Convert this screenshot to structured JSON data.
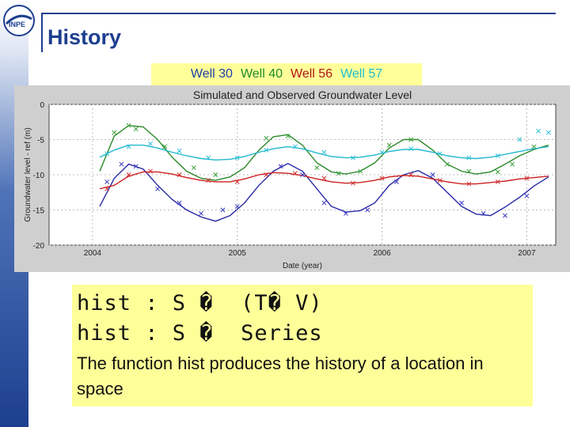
{
  "header": {
    "title": "History",
    "logo_text": "INPE"
  },
  "legend": [
    {
      "label": "Well 30",
      "color": "#1f3fa8"
    },
    {
      "label": "Well 40",
      "color": "#1f8a2e"
    },
    {
      "label": "Well 56",
      "color": "#b01515"
    },
    {
      "label": "Well 57",
      "color": "#1fbcd0"
    }
  ],
  "code": {
    "line1": "hist : S �  (T� V)",
    "line2": "hist : S �  Series"
  },
  "description": "The function hist produces the history of a location in space",
  "chart_data": {
    "type": "line",
    "title": "Simulated and Observed Groundwater Level",
    "xlabel": "Date (year)",
    "ylabel": "Groundwater level - ref (m)",
    "xlim": [
      2003.7,
      2007.2
    ],
    "ylim": [
      -20,
      0
    ],
    "xticks": [
      "2004",
      "2005",
      "2006",
      "2007"
    ],
    "yticks": [
      "0",
      "-5",
      "-10",
      "-15",
      "-20"
    ],
    "grid": true,
    "series": [
      {
        "color": "#2a2aa8",
        "x": [
          2004.05,
          2004.15,
          2004.25,
          2004.35,
          2004.45,
          2004.55,
          2004.65,
          2004.75,
          2004.85,
          2004.95,
          2005.05,
          2005.15,
          2005.25,
          2005.35,
          2005.45,
          2005.55,
          2005.65,
          2005.75,
          2005.85,
          2005.95,
          2006.05,
          2006.15,
          2006.25,
          2006.35,
          2006.45,
          2006.55,
          2006.65,
          2006.75,
          2006.85,
          2006.95,
          2007.05,
          2007.15
        ],
        "y": [
          -14.5,
          -10.5,
          -8.5,
          -9.2,
          -11.5,
          -13.5,
          -15,
          -16,
          -16.6,
          -15.8,
          -14,
          -11.5,
          -9.5,
          -8.4,
          -9.5,
          -12,
          -14.5,
          -15.3,
          -15.1,
          -14,
          -11.5,
          -10,
          -9.4,
          -10.5,
          -12.5,
          -14.5,
          -15.6,
          -15.8,
          -14.6,
          -13.2,
          -11.6,
          -10.3
        ]
      },
      {
        "color": "#2a8a2a",
        "x": [
          2004.05,
          2004.15,
          2004.25,
          2004.35,
          2004.45,
          2004.55,
          2004.65,
          2004.75,
          2004.85,
          2004.95,
          2005.05,
          2005.15,
          2005.25,
          2005.35,
          2005.45,
          2005.55,
          2005.65,
          2005.75,
          2005.85,
          2005.95,
          2006.05,
          2006.15,
          2006.25,
          2006.35,
          2006.45,
          2006.55,
          2006.65,
          2006.75,
          2006.85,
          2006.95,
          2007.05,
          2007.15
        ],
        "y": [
          -9.5,
          -4.5,
          -3,
          -3.2,
          -5,
          -7.5,
          -9.5,
          -10.5,
          -10.8,
          -10.3,
          -9,
          -6.5,
          -4.6,
          -4.3,
          -5.8,
          -8.3,
          -9.6,
          -9.9,
          -9.5,
          -8.3,
          -6.2,
          -5,
          -5,
          -6.5,
          -8.5,
          -9.5,
          -9.9,
          -9.6,
          -8.5,
          -7.3,
          -6.4,
          -5.8
        ]
      },
      {
        "color": "#cc2020",
        "x": [
          2004.05,
          2004.15,
          2004.25,
          2004.35,
          2004.45,
          2004.55,
          2004.65,
          2004.75,
          2004.85,
          2004.95,
          2005.05,
          2005.15,
          2005.25,
          2005.35,
          2005.45,
          2005.55,
          2005.65,
          2005.75,
          2005.85,
          2005.95,
          2006.05,
          2006.15,
          2006.25,
          2006.35,
          2006.45,
          2006.55,
          2006.65,
          2006.75,
          2006.85,
          2006.95,
          2007.05,
          2007.15
        ],
        "y": [
          -12,
          -11.5,
          -10.2,
          -9.6,
          -9.6,
          -9.9,
          -10.4,
          -10.8,
          -11,
          -11,
          -10.6,
          -10,
          -9.7,
          -9.8,
          -10.1,
          -10.6,
          -11,
          -11.2,
          -11.1,
          -10.8,
          -10.3,
          -10.1,
          -10.2,
          -10.6,
          -11,
          -11.3,
          -11.3,
          -11.1,
          -10.9,
          -10.6,
          -10.4,
          -10.2
        ]
      },
      {
        "color": "#22b8d0",
        "x": [
          2004.05,
          2004.15,
          2004.25,
          2004.35,
          2004.45,
          2004.55,
          2004.65,
          2004.75,
          2004.85,
          2004.95,
          2005.05,
          2005.15,
          2005.25,
          2005.35,
          2005.45,
          2005.55,
          2005.65,
          2005.75,
          2005.85,
          2005.95,
          2006.05,
          2006.15,
          2006.25,
          2006.35,
          2006.45,
          2006.55,
          2006.65,
          2006.75,
          2006.85,
          2006.95,
          2007.05,
          2007.15
        ],
        "y": [
          -7.5,
          -6.5,
          -5.8,
          -5.8,
          -6.2,
          -6.8,
          -7.3,
          -7.7,
          -7.9,
          -7.8,
          -7.4,
          -6.8,
          -6.3,
          -6,
          -6.3,
          -6.9,
          -7.4,
          -7.6,
          -7.5,
          -7.2,
          -6.7,
          -6.4,
          -6.4,
          -6.8,
          -7.3,
          -7.6,
          -7.7,
          -7.5,
          -7.1,
          -6.7,
          -6.3,
          -6
        ]
      }
    ],
    "observed": [
      {
        "color": "#3b3bc0",
        "x": [
          2004.1,
          2004.2,
          2004.3,
          2004.45,
          2004.6,
          2004.75,
          2004.9,
          2005.0,
          2005.3,
          2005.45,
          2005.6,
          2005.75,
          2005.9,
          2006.1,
          2006.35,
          2006.55,
          2006.7,
          2006.85,
          2007.0
        ],
        "y": [
          -11,
          -8.5,
          -8.8,
          -12,
          -14,
          -15.5,
          -15,
          -14.5,
          -8.8,
          -10,
          -14,
          -15.5,
          -15,
          -11,
          -10,
          -14,
          -15.5,
          -15.8,
          -13
        ]
      },
      {
        "color": "#3aa03a",
        "x": [
          2004.15,
          2004.25,
          2004.3,
          2004.5,
          2004.7,
          2004.85,
          2005.2,
          2005.35,
          2005.55,
          2005.7,
          2005.85,
          2006.05,
          2006.2,
          2006.45,
          2006.6,
          2006.8,
          2006.9,
          2007.05
        ],
        "y": [
          -4,
          -3,
          -3.5,
          -6,
          -9,
          -10,
          -4.8,
          -4.5,
          -9,
          -9.8,
          -9.5,
          -5.8,
          -5,
          -8.5,
          -9.5,
          -9.6,
          -8.5,
          -6
        ]
      },
      {
        "color": "#d03030",
        "x": [
          2004.1,
          2004.25,
          2004.4,
          2004.6,
          2004.8,
          2005.0,
          2005.2,
          2005.4,
          2005.6,
          2005.8,
          2006.0,
          2006.2,
          2006.4,
          2006.6,
          2006.8,
          2007.0
        ],
        "y": [
          -12,
          -10,
          -9.5,
          -10,
          -10.8,
          -11,
          -10,
          -9.8,
          -10.5,
          -11.2,
          -10.5,
          -10,
          -10.8,
          -11.3,
          -11,
          -10.5
        ]
      },
      {
        "color": "#30c0d8",
        "x": [
          2004.1,
          2004.25,
          2004.4,
          2004.6,
          2004.8,
          2005.0,
          2005.2,
          2005.4,
          2005.6,
          2005.8,
          2006.0,
          2006.2,
          2006.4,
          2006.6,
          2006.8,
          2006.95,
          2007.08,
          2007.15
        ],
        "y": [
          -7,
          -6,
          -5.6,
          -6.6,
          -7.6,
          -7.6,
          -6.5,
          -6,
          -6.8,
          -7.6,
          -6.8,
          -6.3,
          -7,
          -7.6,
          -7.3,
          -5,
          -3.8,
          -4
        ]
      }
    ]
  }
}
